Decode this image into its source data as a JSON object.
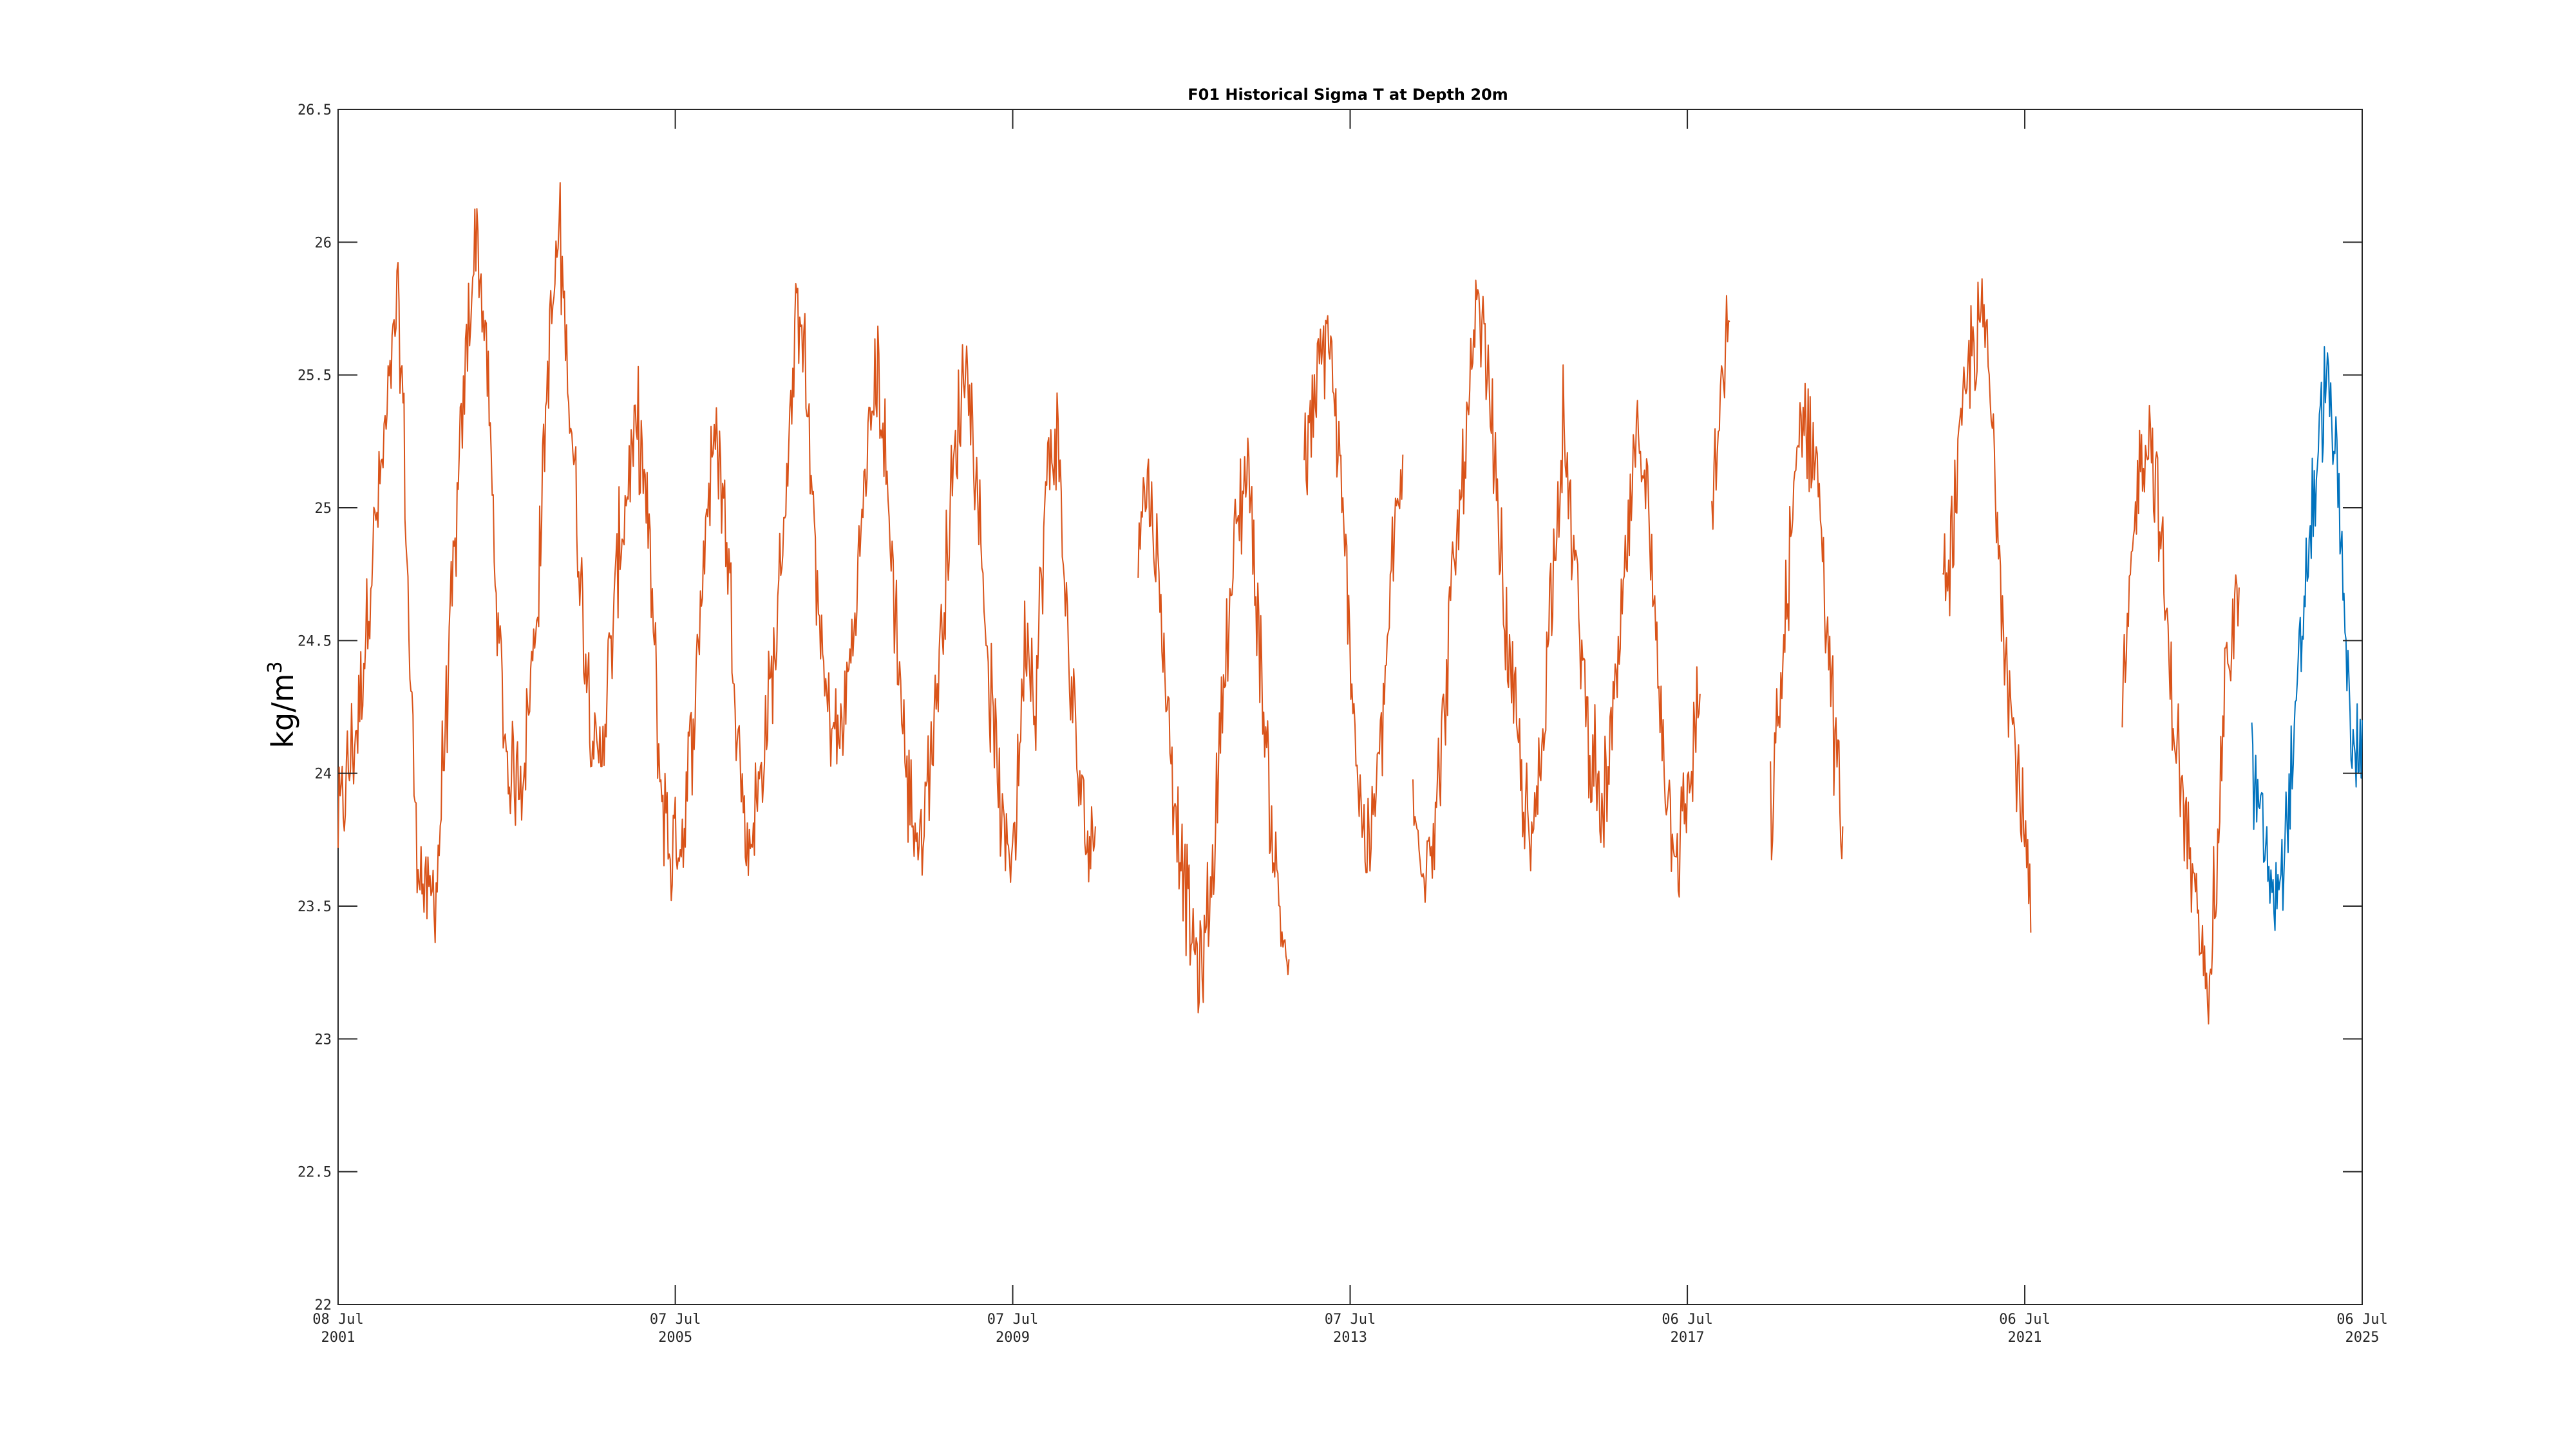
{
  "chart_data": {
    "type": "line",
    "title": "F01 Historical Sigma T at Depth 20m",
    "xlabel": "",
    "ylabel": "kg/m",
    "ylabel_superscript": "3",
    "ylim": [
      22,
      26.5
    ],
    "xlim": [
      "2001-07-08",
      "2025-07-06"
    ],
    "grid": false,
    "y_ticks": [
      "22",
      "22.5",
      "23",
      "23.5",
      "24",
      "24.5",
      "25",
      "25.5",
      "26",
      "26.5"
    ],
    "y_tick_values": [
      22,
      22.5,
      23,
      23.5,
      24,
      24.5,
      25,
      25.5,
      26,
      26.5
    ],
    "x_ticks": [
      {
        "date": "2001-07-08",
        "line1": "08 Jul",
        "line2": "2001"
      },
      {
        "date": "2005-07-07",
        "line1": "07 Jul",
        "line2": "2005"
      },
      {
        "date": "2009-07-07",
        "line1": "07 Jul",
        "line2": "2009"
      },
      {
        "date": "2013-07-07",
        "line1": "07 Jul",
        "line2": "2013"
      },
      {
        "date": "2017-07-06",
        "line1": "06 Jul",
        "line2": "2017"
      },
      {
        "date": "2021-07-06",
        "line1": "06 Jul",
        "line2": "2021"
      },
      {
        "date": "2025-07-06",
        "line1": "06 Jul",
        "line2": "2025"
      }
    ],
    "series": [
      {
        "color": "#D95319",
        "segments": [
          [
            [
              "2001-07-08",
              23.8
            ],
            [
              "2001-10-01",
              24.2
            ],
            [
              "2001-12-01",
              24.8
            ],
            [
              "2002-02-01",
              25.3
            ],
            [
              "2002-03-20",
              25.75
            ],
            [
              "2002-04-15",
              25.4
            ],
            [
              "2002-05-15",
              24.4
            ],
            [
              "2002-06-15",
              23.7
            ],
            [
              "2002-08-01",
              23.5
            ],
            [
              "2002-09-10",
              23.6
            ],
            [
              "2002-10-15",
              24.2
            ],
            [
              "2002-12-01",
              24.9
            ],
            [
              "2003-01-15",
              25.6
            ],
            [
              "2003-03-01",
              26.05
            ],
            [
              "2003-04-15",
              25.5
            ],
            [
              "2003-06-01",
              24.5
            ],
            [
              "2003-07-15",
              24.0
            ],
            [
              "2003-09-15",
              24.0
            ],
            [
              "2003-11-15",
              24.6
            ],
            [
              "2004-01-01",
              25.5
            ],
            [
              "2004-02-20",
              26.05
            ],
            [
              "2004-04-15",
              25.3
            ],
            [
              "2004-06-01",
              24.6
            ],
            [
              "2004-08-01",
              24.0
            ],
            [
              "2004-09-15",
              24.3
            ],
            [
              "2004-11-01",
              24.8
            ],
            [
              "2004-12-15",
              25.1
            ],
            [
              "2005-02-01",
              25.3
            ],
            [
              "2005-03-20",
              24.8
            ],
            [
              "2005-05-01",
              24.0
            ],
            [
              "2005-06-15",
              23.7
            ],
            [
              "2005-08-15",
              23.8
            ],
            [
              "2005-10-01",
              24.3
            ],
            [
              "2005-11-20",
              25.0
            ],
            [
              "2006-01-01",
              25.3
            ],
            [
              "2006-02-15",
              24.9
            ],
            [
              "2006-04-01",
              24.2
            ],
            [
              "2006-05-15",
              23.7
            ],
            [
              "2006-07-15",
              24.0
            ],
            [
              "2006-09-15",
              24.5
            ],
            [
              "2006-11-15",
              25.3
            ],
            [
              "2007-01-01",
              25.85
            ],
            [
              "2007-02-20",
              25.0
            ],
            [
              "2007-04-15",
              24.3
            ],
            [
              "2007-06-15",
              24.1
            ],
            [
              "2007-08-15",
              24.5
            ],
            [
              "2007-10-15",
              25.2
            ],
            [
              "2007-12-01",
              25.55
            ],
            [
              "2008-02-01",
              24.8
            ],
            [
              "2008-04-01",
              24.0
            ],
            [
              "2008-06-01",
              23.7
            ],
            [
              "2008-08-01",
              24.2
            ],
            [
              "2008-10-01",
              24.9
            ],
            [
              "2008-12-15",
              25.6
            ],
            [
              "2009-02-01",
              25.1
            ],
            [
              "2009-04-01",
              24.3
            ],
            [
              "2009-06-01",
              23.7
            ],
            [
              "2009-07-20",
              23.8
            ],
            [
              "2009-09-01",
              24.6
            ],
            [
              "2009-10-15",
              24.3
            ],
            [
              "2009-12-01",
              25.1
            ],
            [
              "2010-01-15",
              25.3
            ],
            [
              "2010-03-01",
              24.5
            ],
            [
              "2010-04-15",
              24.0
            ],
            [
              "2010-06-01",
              23.7
            ],
            [
              "2010-06-30",
              23.8
            ]
          ],
          [
            [
              "2011-01-01",
              25.0
            ],
            [
              "2011-02-15",
              25.1
            ],
            [
              "2011-04-01",
              24.7
            ],
            [
              "2011-06-01",
              24.0
            ],
            [
              "2011-08-01",
              23.5
            ],
            [
              "2011-10-01",
              23.2
            ],
            [
              "2011-11-15",
              23.6
            ],
            [
              "2012-01-01",
              24.3
            ],
            [
              "2012-03-01",
              24.9
            ],
            [
              "2012-04-20",
              25.2
            ],
            [
              "2012-06-15",
              24.4
            ],
            [
              "2012-08-01",
              23.8
            ],
            [
              "2012-09-15",
              23.4
            ],
            [
              "2012-10-15",
              23.3
            ]
          ],
          [
            [
              "2012-12-20",
              25.1
            ],
            [
              "2013-02-15",
              25.45
            ],
            [
              "2013-04-01",
              25.7
            ],
            [
              "2013-05-15",
              25.2
            ],
            [
              "2013-07-01",
              24.6
            ],
            [
              "2013-08-15",
              23.9
            ],
            [
              "2013-10-01",
              23.7
            ],
            [
              "2013-11-15",
              24.1
            ],
            [
              "2014-01-01",
              24.7
            ],
            [
              "2014-02-20",
              25.2
            ]
          ],
          [
            [
              "2014-04-05",
              23.8
            ],
            [
              "2014-06-01",
              23.7
            ],
            [
              "2014-07-20",
              23.9
            ],
            [
              "2014-09-15",
              24.6
            ],
            [
              "2014-11-15",
              25.2
            ],
            [
              "2015-01-15",
              25.75
            ],
            [
              "2015-03-15",
              25.3
            ],
            [
              "2015-05-15",
              24.5
            ],
            [
              "2015-07-15",
              24.0
            ],
            [
              "2015-09-01",
              23.7
            ],
            [
              "2015-10-15",
              24.1
            ],
            [
              "2015-12-01",
              24.8
            ],
            [
              "2016-01-15",
              25.3
            ],
            [
              "2016-03-01",
              24.8
            ],
            [
              "2016-05-01",
              24.2
            ],
            [
              "2016-07-01",
              23.8
            ],
            [
              "2016-09-01",
              24.3
            ],
            [
              "2016-11-01",
              25.0
            ],
            [
              "2016-12-15",
              25.35
            ],
            [
              "2017-02-15",
              24.6
            ],
            [
              "2017-04-15",
              23.9
            ],
            [
              "2017-06-01",
              23.7
            ],
            [
              "2017-07-20",
              24.0
            ],
            [
              "2017-08-30",
              24.3
            ]
          ],
          [
            [
              "2017-10-20",
              25.0
            ],
            [
              "2017-12-01",
              25.4
            ],
            [
              "2018-01-05",
              25.7
            ]
          ],
          [
            [
              "2018-07-01",
              23.8
            ],
            [
              "2018-08-15",
              24.3
            ],
            [
              "2018-10-01",
              24.9
            ],
            [
              "2018-11-15",
              25.4
            ],
            [
              "2019-01-15",
              25.2
            ],
            [
              "2019-03-01",
              24.6
            ],
            [
              "2019-04-15",
              24.0
            ],
            [
              "2019-05-10",
              23.8
            ]
          ],
          [
            [
              "2020-07-15",
              24.6
            ],
            [
              "2020-09-15",
              25.1
            ],
            [
              "2020-11-15",
              25.6
            ],
            [
              "2021-01-15",
              25.7
            ],
            [
              "2021-03-01",
              25.1
            ],
            [
              "2021-05-01",
              24.3
            ],
            [
              "2021-07-01",
              23.8
            ],
            [
              "2021-08-01",
              23.4
            ]
          ],
          [
            [
              "2022-09-01",
              24.2
            ],
            [
              "2022-10-15",
              24.8
            ],
            [
              "2022-11-15",
              25.2
            ],
            [
              "2023-01-01",
              25.3
            ],
            [
              "2023-02-15",
              24.9
            ],
            [
              "2023-04-01",
              24.3
            ],
            [
              "2023-06-01",
              23.8
            ],
            [
              "2023-07-15",
              23.5
            ],
            [
              "2023-09-01",
              23.2
            ],
            [
              "2023-10-15",
              23.6
            ],
            [
              "2023-11-15",
              24.3
            ],
            [
              "2024-01-01",
              24.6
            ],
            [
              "2024-01-20",
              24.7
            ]
          ]
        ]
      },
      {
        "color": "#0072BD",
        "segments": [
          [
            [
              "2024-03-15",
              24.0
            ],
            [
              "2024-05-01",
              23.8
            ],
            [
              "2024-06-15",
              23.5
            ],
            [
              "2024-08-01",
              23.7
            ],
            [
              "2024-09-15",
              24.1
            ],
            [
              "2024-11-01",
              24.7
            ],
            [
              "2024-12-15",
              25.1
            ],
            [
              "2025-02-01",
              25.5
            ],
            [
              "2025-03-01",
              25.3
            ],
            [
              "2025-04-01",
              24.9
            ],
            [
              "2025-05-01",
              24.4
            ],
            [
              "2025-06-01",
              24.0
            ],
            [
              "2025-07-06",
              24.2
            ]
          ]
        ]
      }
    ]
  }
}
